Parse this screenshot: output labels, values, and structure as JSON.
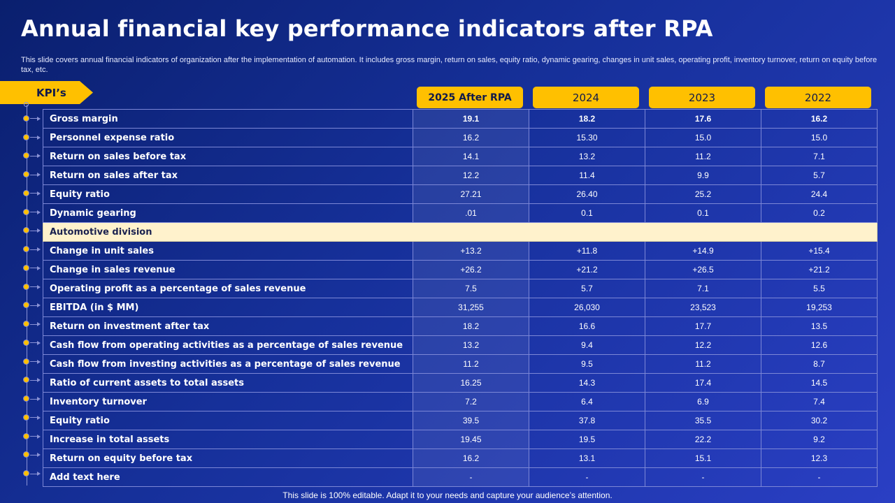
{
  "title": "Annual financial key performance indicators after RPA",
  "subtitle": "This slide covers annual financial indicators of organization after the implementation of automation. It includes gross margin, return on sales, equity ratio, dynamic gearing, changes in unit sales, operating profit, inventory turnover, return on equity before tax,  etc.",
  "kpi_tab_label": "KPI’s",
  "columns": [
    "2025 After RPA",
    "2024",
    "2023",
    "2022"
  ],
  "colors": {
    "accent": "#ffc000",
    "section_bg": "#fff2cc",
    "background": "#16309a"
  },
  "rows": [
    {
      "label": "Gross margin",
      "values": [
        "19.1",
        "18.2",
        "17.6",
        "16.2"
      ],
      "bold": true
    },
    {
      "label": "Personnel expense ratio",
      "values": [
        "16.2",
        "15.30",
        "15.0",
        "15.0"
      ]
    },
    {
      "label": "Return on sales before tax",
      "values": [
        "14.1",
        "13.2",
        "11.2",
        "7.1"
      ]
    },
    {
      "label": "Return on sales after tax",
      "values": [
        "12.2",
        "11.4",
        "9.9",
        "5.7"
      ]
    },
    {
      "label": "Equity ratio",
      "values": [
        "27.21",
        "26.40",
        "25.2",
        "24.4"
      ]
    },
    {
      "label": "Dynamic gearing",
      "values": [
        ".01",
        "0.1",
        "0.1",
        "0.2"
      ]
    },
    {
      "label": "Automotive division",
      "section": true
    },
    {
      "label": "Change in unit sales",
      "values": [
        "+13.2",
        "+11.8",
        "+14.9",
        "+15.4"
      ]
    },
    {
      "label": "Change in sales revenue",
      "values": [
        "+26.2",
        "+21.2",
        "+26.5",
        "+21.2"
      ]
    },
    {
      "label": "Operating profit as a percentage of sales revenue",
      "values": [
        "7.5",
        "5.7",
        "7.1",
        "5.5"
      ]
    },
    {
      "label": "EBITDA (in $ MM)",
      "values": [
        "31,255",
        "26,030",
        "23,523",
        "19,253"
      ]
    },
    {
      "label": "Return on investment after tax",
      "values": [
        "18.2",
        "16.6",
        "17.7",
        "13.5"
      ]
    },
    {
      "label": "Cash flow from operating activities as a percentage of sales revenue",
      "values": [
        "13.2",
        "9.4",
        "12.2",
        "12.6"
      ]
    },
    {
      "label": "Cash flow from investing activities as a percentage of sales revenue",
      "values": [
        "11.2",
        "9.5",
        "11.2",
        "8.7"
      ]
    },
    {
      "label": "Ratio of current assets to total assets",
      "values": [
        "16.25",
        "14.3",
        "17.4",
        "14.5"
      ]
    },
    {
      "label": "Inventory turnover",
      "values": [
        "7.2",
        "6.4",
        "6.9",
        "7.4"
      ]
    },
    {
      "label": "Equity ratio",
      "values": [
        "39.5",
        "37.8",
        "35.5",
        "30.2"
      ]
    },
    {
      "label": "Increase in total assets",
      "values": [
        "19.45",
        "19.5",
        "22.2",
        "9.2"
      ]
    },
    {
      "label": "Return on equity before tax",
      "values": [
        "16.2",
        "13.1",
        "15.1",
        "12.3"
      ]
    },
    {
      "label": "Add text here",
      "values": [
        "-",
        "-",
        "-",
        "-"
      ]
    }
  ],
  "footer": "This slide is 100% editable. Adapt it to your needs and capture your audience’s attention."
}
